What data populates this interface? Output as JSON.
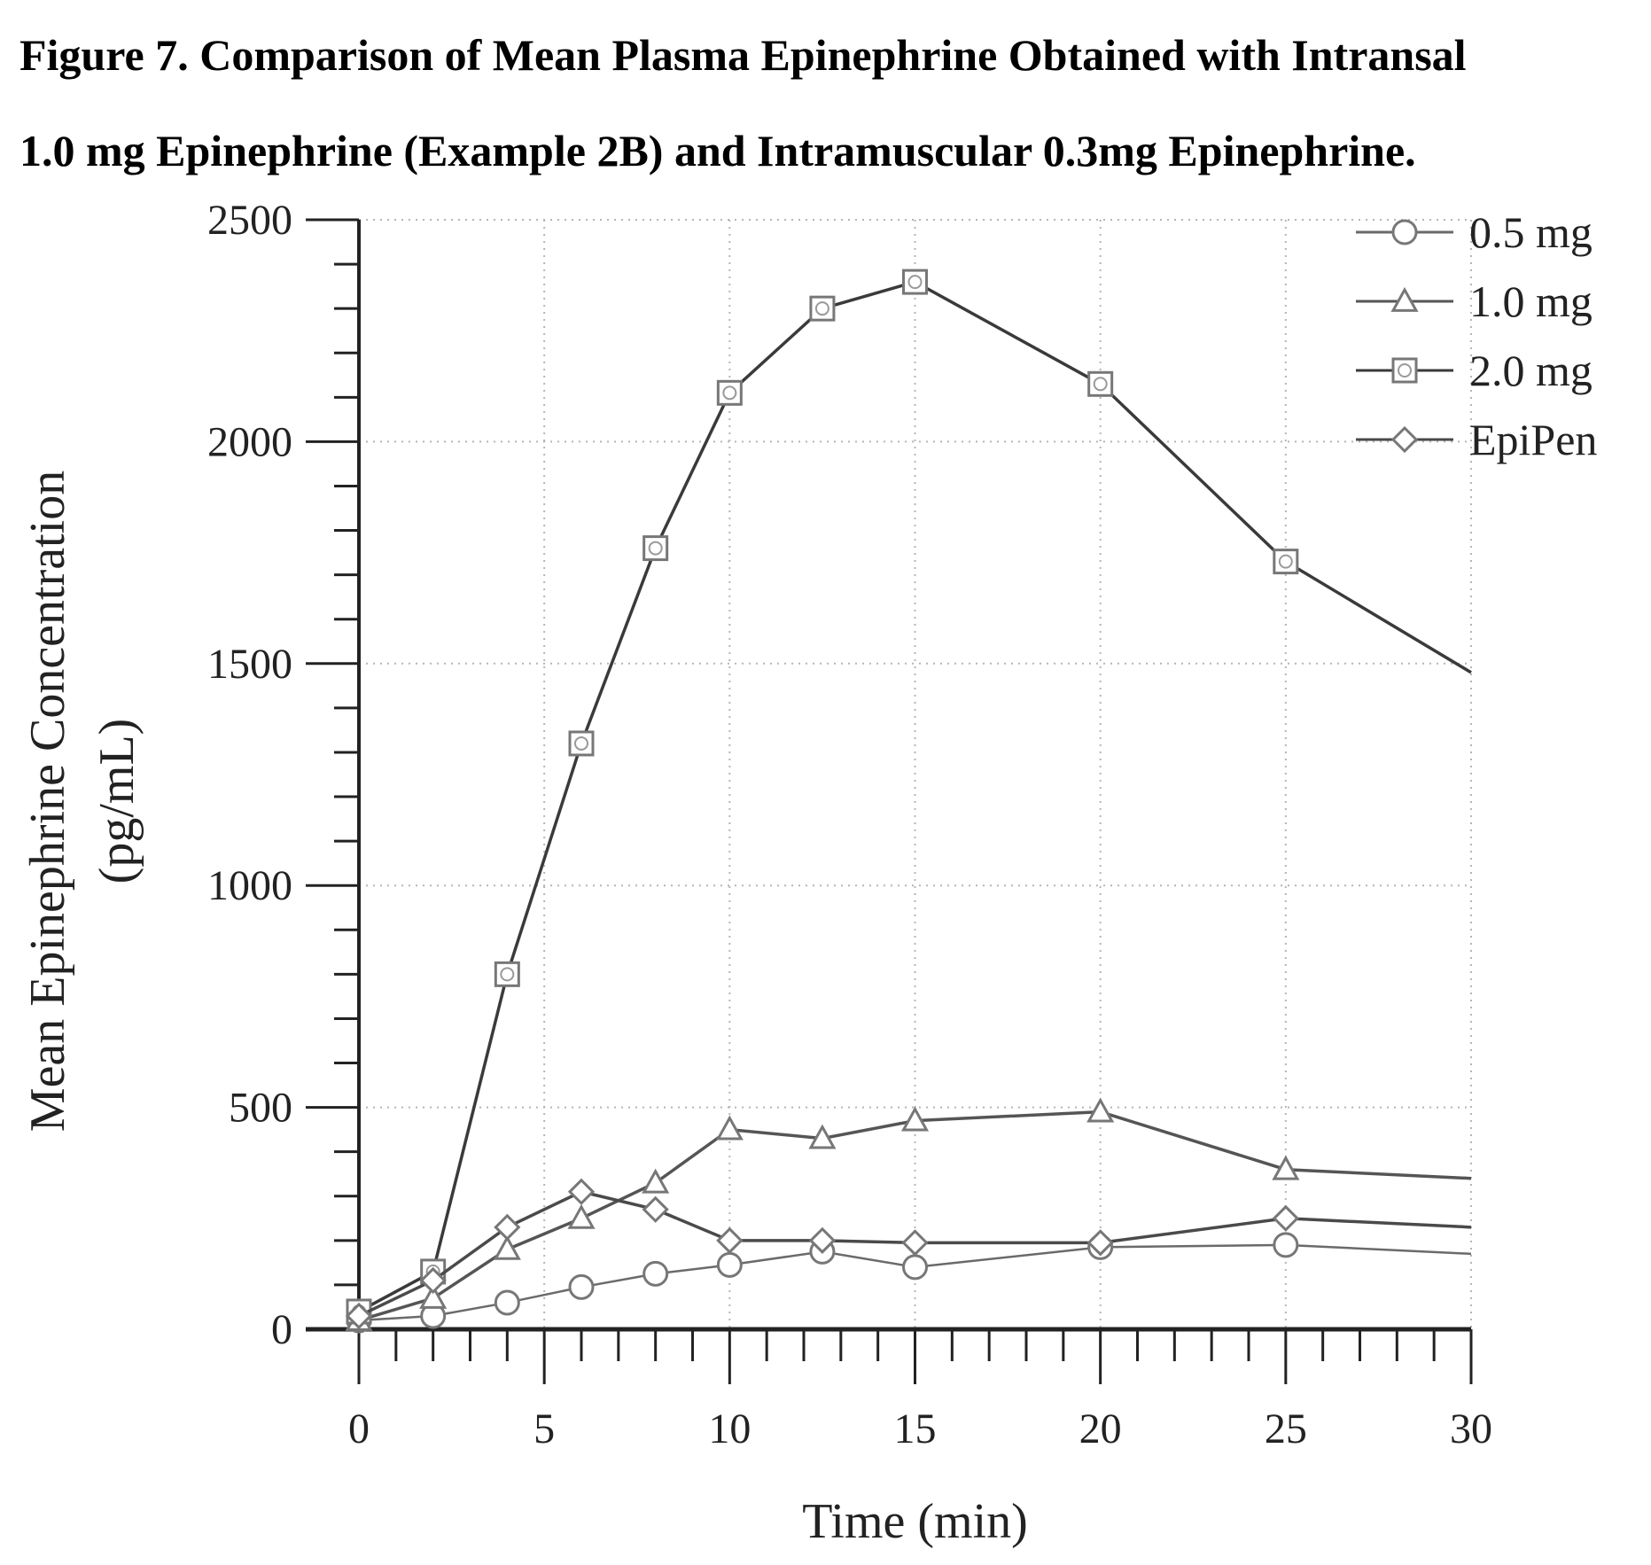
{
  "figure": {
    "title_line1": "Figure 7. Comparison of Mean Plasma Epinephrine Obtained with Intransal",
    "title_line2": "1.0 mg Epinephrine (Example 2B) and Intramuscular 0.3mg Epinephrine."
  },
  "chart_data": {
    "type": "line",
    "title": "",
    "xlabel": "Time (min)",
    "ylabel": "Mean Epinephrine Concentration",
    "ylabel_units": "(pg/mL)",
    "xlim": [
      0,
      30
    ],
    "ylim": [
      0,
      2500
    ],
    "x_ticks": [
      0,
      5,
      10,
      15,
      20,
      25,
      30
    ],
    "y_ticks": [
      0,
      500,
      1000,
      1500,
      2000,
      2500
    ],
    "grid": true,
    "legend_position": "top-right",
    "series": [
      {
        "name": "0.5 mg",
        "marker": "circle",
        "x": [
          0,
          2,
          4,
          6,
          8,
          10,
          12.5,
          15,
          20,
          25,
          30
        ],
        "y": [
          20,
          30,
          60,
          95,
          125,
          145,
          175,
          140,
          185,
          190,
          170
        ]
      },
      {
        "name": "1.0 mg",
        "marker": "triangle",
        "x": [
          0,
          2,
          4,
          6,
          8,
          10,
          12.5,
          15,
          20,
          25,
          30
        ],
        "y": [
          20,
          70,
          180,
          250,
          330,
          450,
          430,
          470,
          490,
          360,
          340
        ]
      },
      {
        "name": "2.0 mg",
        "marker": "square",
        "x": [
          0,
          2,
          4,
          6,
          8,
          10,
          12.5,
          15,
          20,
          25,
          30
        ],
        "y": [
          40,
          130,
          800,
          1320,
          1760,
          2110,
          2300,
          2360,
          2130,
          1730,
          1480
        ]
      },
      {
        "name": "EpiPen",
        "marker": "diamond",
        "x": [
          0,
          2,
          4,
          6,
          8,
          10,
          12.5,
          15,
          20,
          25,
          30
        ],
        "y": [
          30,
          110,
          230,
          310,
          270,
          200,
          200,
          195,
          195,
          250,
          230
        ]
      }
    ]
  }
}
